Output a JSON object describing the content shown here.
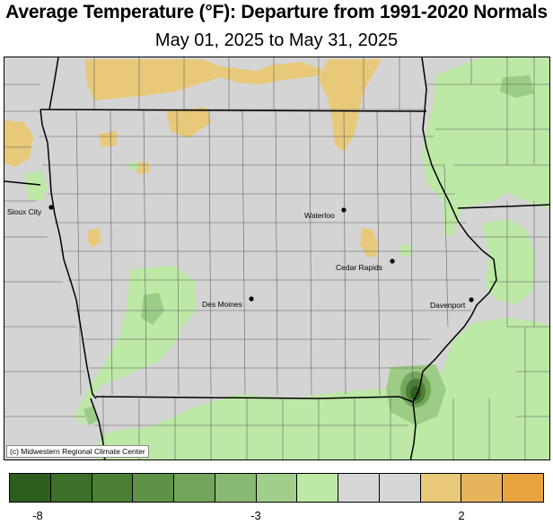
{
  "title": "Average Temperature (°F): Departure from 1991-2020 Normals",
  "subtitle": "May 01, 2025 to May 31, 2025",
  "credit": "(c) Midwestern Regional Climate Center",
  "cities": {
    "sioux_city": "Sioux City",
    "waterloo": "Waterloo",
    "cedar_rapids": "Cedar Rapids",
    "des_moines": "Des Moines",
    "davenport": "Davenport"
  },
  "legend": {
    "colors": [
      "#2d5e1e",
      "#3c7028",
      "#4b8034",
      "#5e9347",
      "#73a55c",
      "#89b872",
      "#a2ce8b",
      "#bde8a6",
      "#d6d6d6",
      "#d6d6d6",
      "#e8c97a",
      "#e6b45c",
      "#e8a23e"
    ],
    "ticks": {
      "low": "-8",
      "mid": "-3",
      "high": "2"
    }
  },
  "colors": {
    "neutral": "#d4d4d4",
    "cool_light": "#bde8a6",
    "cool_mid": "#9ccc86",
    "cool_dark": "#4b8034",
    "warm": "#e8c97a"
  }
}
